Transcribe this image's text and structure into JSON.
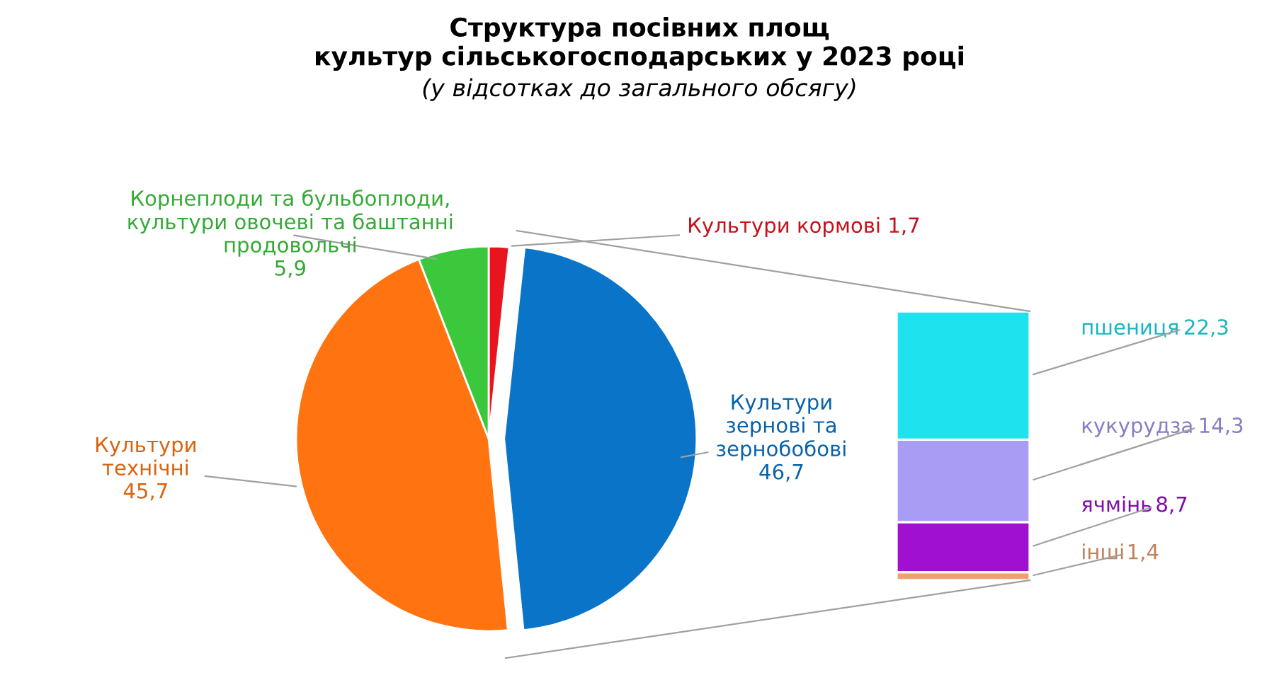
{
  "chart_data": [
    {
      "type": "pie",
      "title": "Структура посівних площ\nкультур сільськогосподарських у 2023 році",
      "subtitle": "(у відсотках до загального обсягу)",
      "categories": [
        "Культури кормові",
        "Культури\nзернові та\nзернобобові",
        "Культури\nтехнічні",
        "Корнеплоди та бульбоплоди,\nкультури овочеві та баштанні\nпродовольчі"
      ],
      "values": [
        1.7,
        46.7,
        45.7,
        5.9
      ],
      "colors": [
        "#e8141e",
        "#0a74c8",
        "#ff7410",
        "#3cc83c"
      ],
      "value_labels": [
        "1,7",
        "46,7",
        "45,7",
        "5,9"
      ]
    },
    {
      "type": "bar",
      "stacked": true,
      "categories": [
        null
      ],
      "series": [
        {
          "name": "інші",
          "color": "#f0a070",
          "values": [
            1.4
          ],
          "value_labels": [
            "1,4"
          ]
        },
        {
          "name": "ячмінь",
          "color": "#a010d0",
          "values": [
            8.7
          ],
          "value_labels": [
            "8,7"
          ]
        },
        {
          "name": "кукурудза",
          "color": "#a99cf5",
          "values": [
            14.3
          ],
          "value_labels": [
            "14,3"
          ]
        },
        {
          "name": "пшениця",
          "color": "#1ee2ee",
          "values": [
            22.3
          ],
          "value_labels": [
            "22,3"
          ]
        }
      ]
    }
  ]
}
